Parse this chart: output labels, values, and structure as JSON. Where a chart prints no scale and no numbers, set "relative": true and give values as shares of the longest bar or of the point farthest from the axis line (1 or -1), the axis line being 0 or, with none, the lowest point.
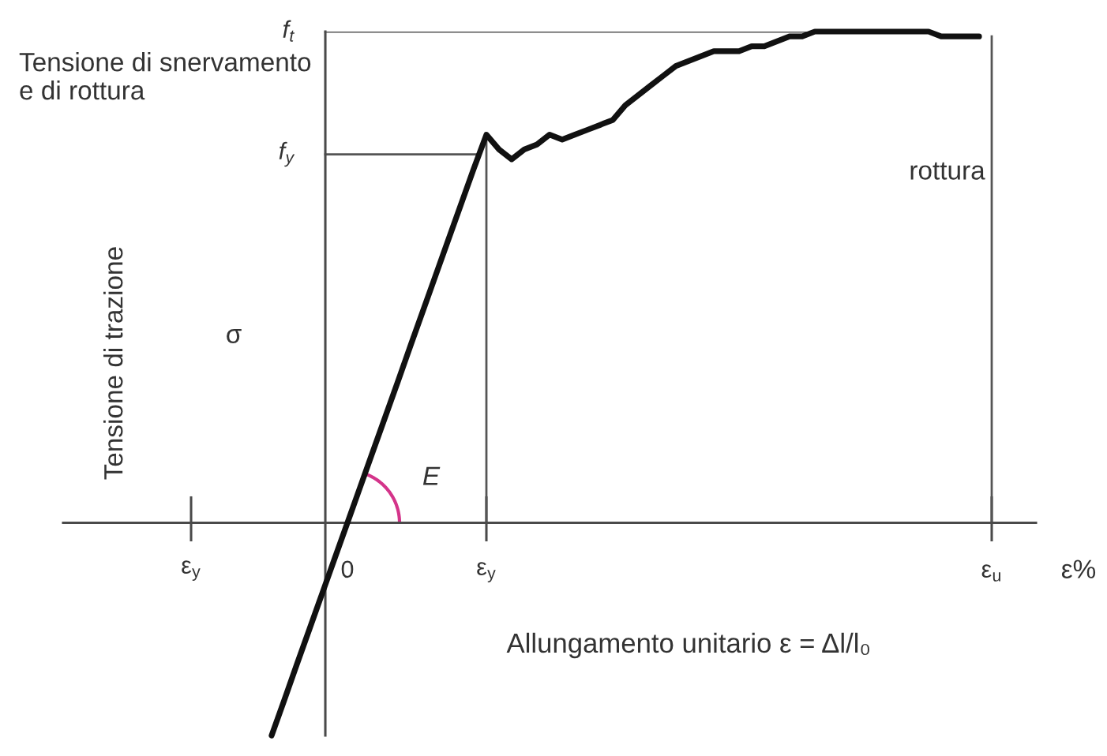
{
  "chart_data": {
    "type": "line",
    "relative": true,
    "xlabel": "Allungamento unitario ε = Δl/l₀",
    "ylabel": "Tensione di trazione",
    "annotations": [
      "Tensione di snervamento\ne di rottura",
      "σ",
      "ε%",
      "E",
      "ε$_{y}$"
    ],
    "categories": [
      null,
      null,
      null,
      null,
      null,
      null,
      null,
      null,
      null,
      null,
      null,
      null,
      null,
      null,
      null,
      null,
      null,
      null,
      null,
      null,
      null,
      null,
      "0",
      null,
      null,
      null,
      null,
      null,
      null,
      null,
      null,
      null,
      null,
      "ε$_{y}$",
      null,
      null,
      null,
      null,
      null,
      null,
      null,
      null,
      null,
      null,
      null,
      null,
      null,
      null,
      null,
      null,
      null,
      null,
      null,
      null,
      null,
      null,
      null,
      null,
      null,
      null,
      null,
      null,
      null,
      null,
      null,
      null,
      null,
      null,
      null,
      null,
      null,
      null,
      null,
      "ε$_{u}$",
      null,
      null,
      null
    ],
    "values": [
      null,
      null,
      null,
      null,
      null,
      null,
      null,
      null,
      null,
      null,
      null,
      null,
      null,
      null,
      null,
      null,
      -0.433,
      -0.361,
      -0.288,
      -0.216,
      -0.144,
      -0.072,
      0,
      0.072,
      0.144,
      0.216,
      0.288,
      0.361,
      0.433,
      0.505,
      0.577,
      0.649,
      0.721,
      0.79,
      0.76,
      0.74,
      0.76,
      0.77,
      0.79,
      0.78,
      0.79,
      0.8,
      0.81,
      0.82,
      0.85,
      0.87,
      0.89,
      0.91,
      0.93,
      0.94,
      0.95,
      0.96,
      0.96,
      0.96,
      0.97,
      0.97,
      0.98,
      0.99,
      0.99,
      1.0,
      1.0,
      1.0,
      1.0,
      1.0,
      1.0,
      1.0,
      1.0,
      1.0,
      1.0,
      0.99,
      0.99,
      0.99,
      0.99,
      null,
      null,
      null,
      null
    ],
    "color": "#111111",
    "ref_lines": [
      {
        "axis": "y",
        "value": 1.0,
        "label": "f$_{t}$",
        "color": "#555555"
      },
      {
        "axis": "y",
        "value": 0.75,
        "label": "f$_{y}$",
        "color": "#555555"
      },
      {
        "axis": "x",
        "value": "ε$_{y}$",
        "label": null,
        "color": "#555555"
      },
      {
        "axis": "x",
        "value": "ε$_{u}$",
        "label": "rottura",
        "color": "#555555"
      }
    ]
  }
}
